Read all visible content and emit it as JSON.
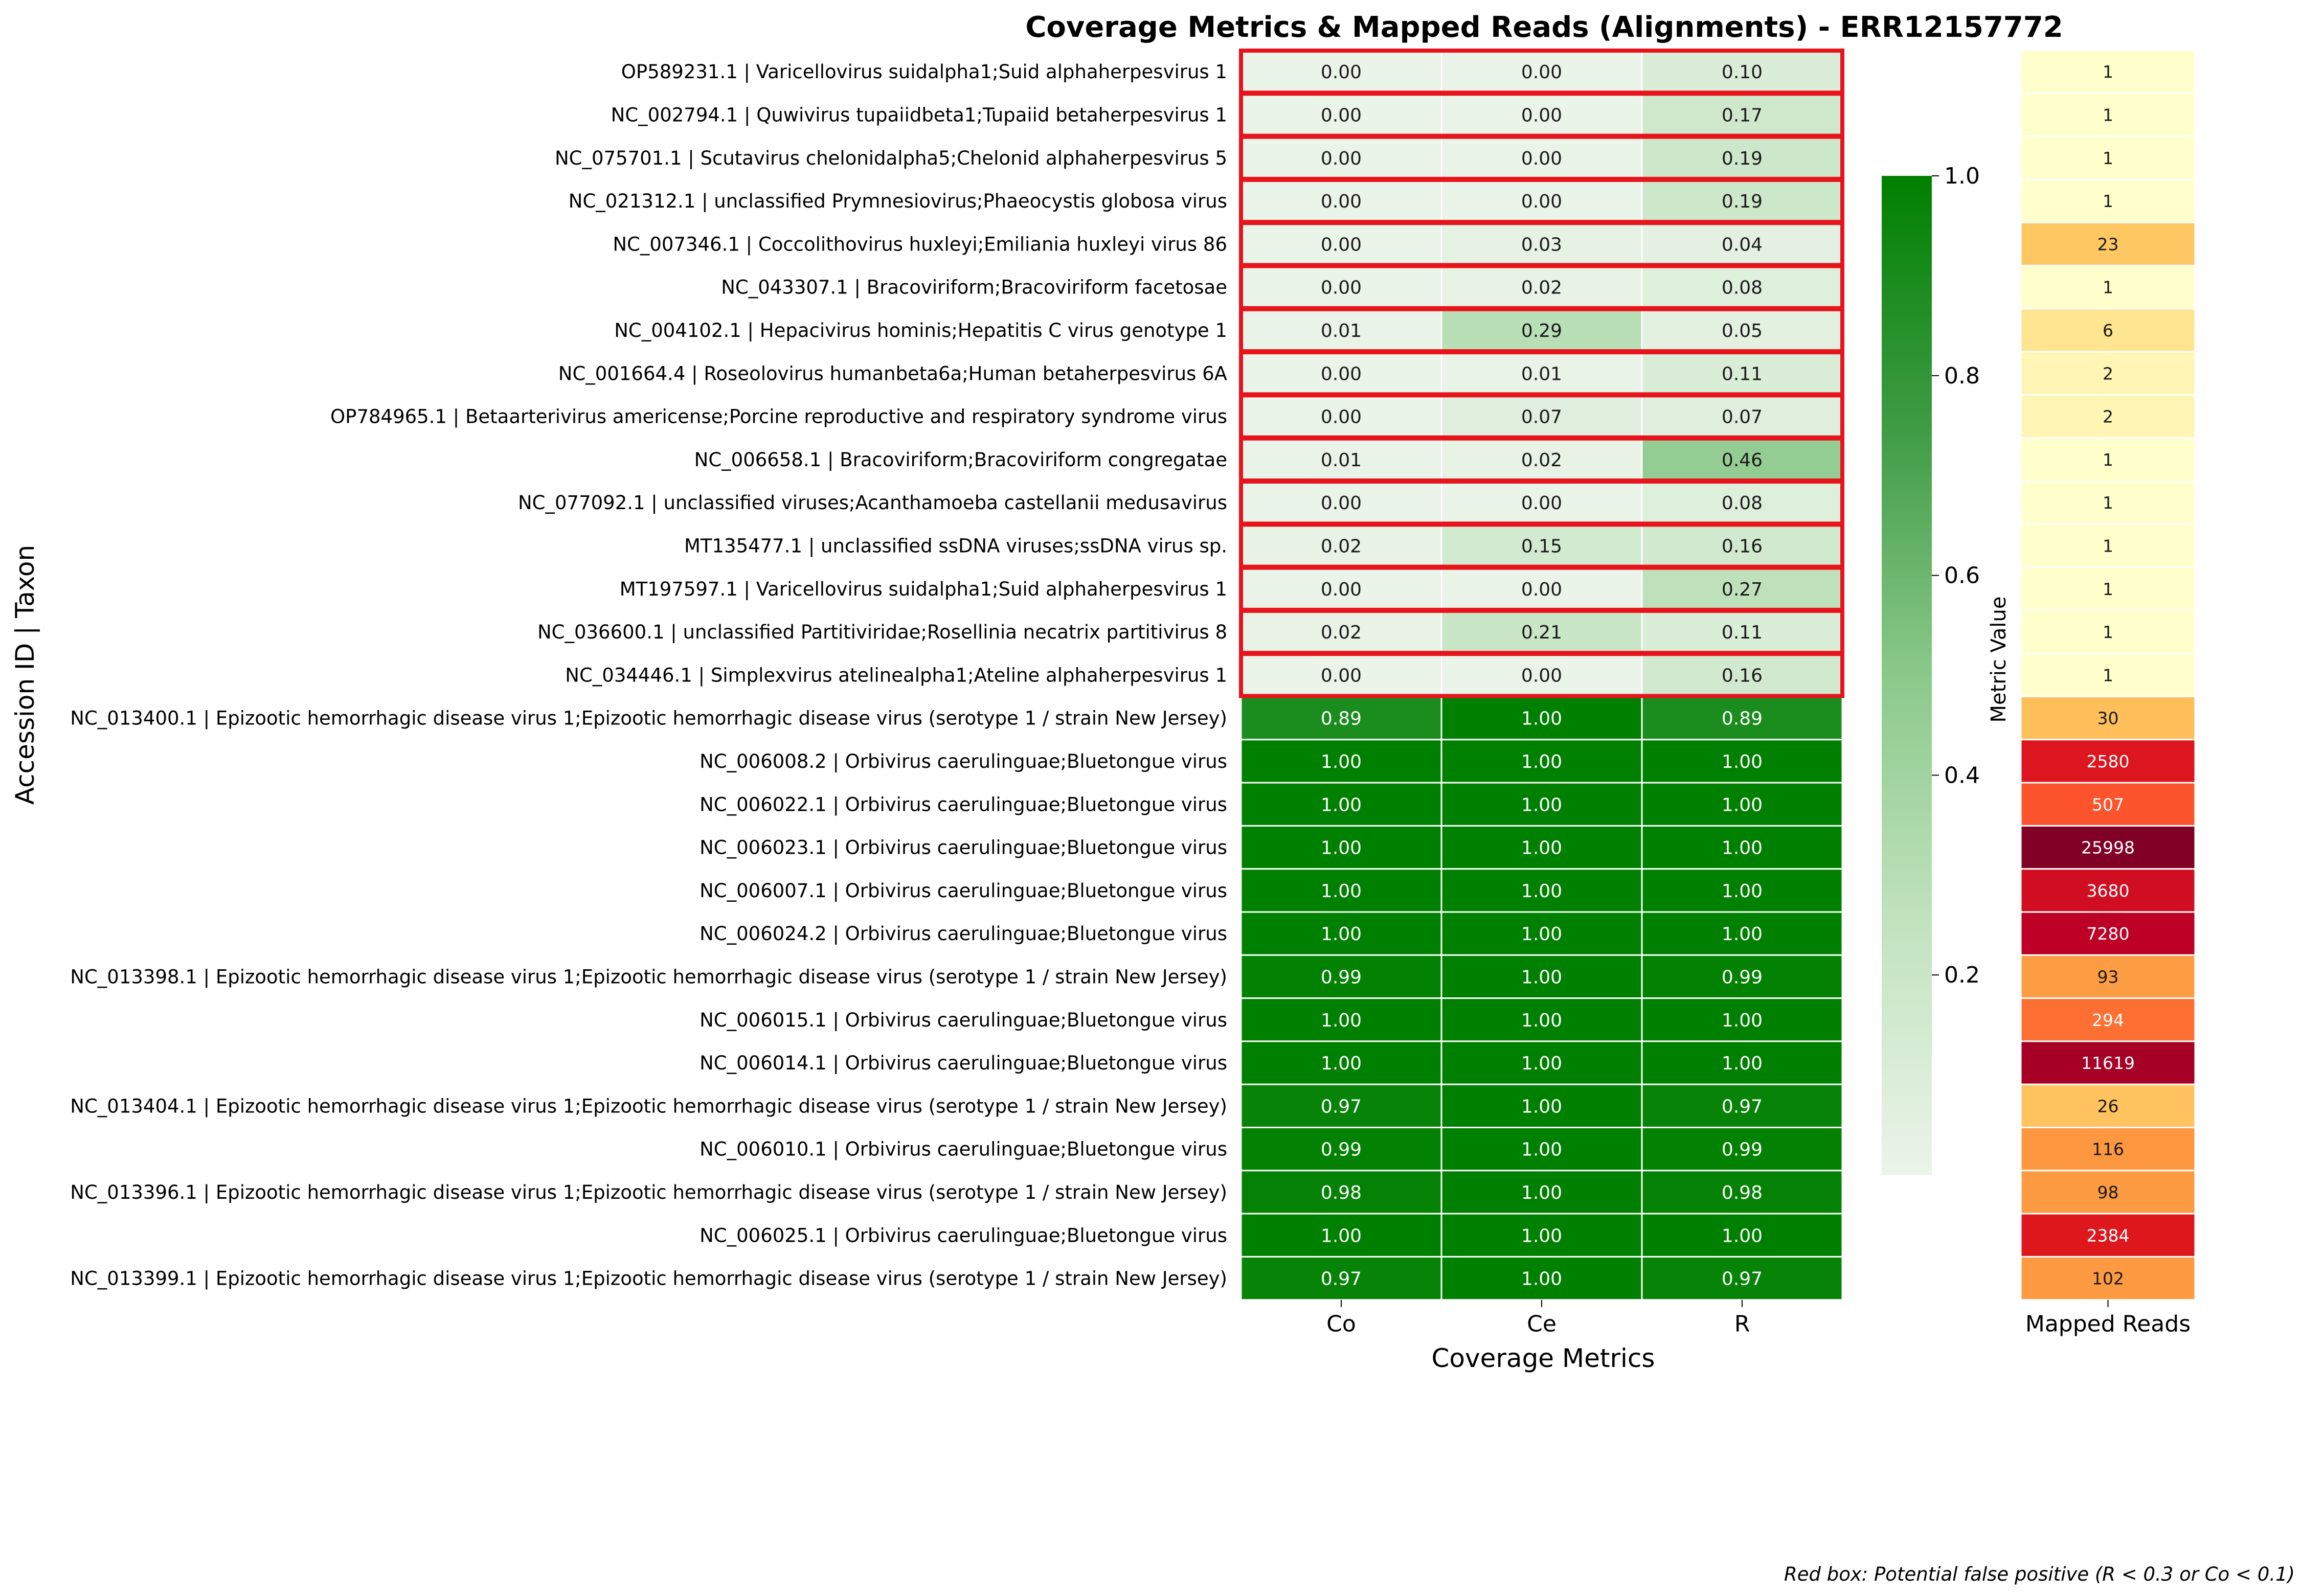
{
  "chart_data": {
    "type": "heatmap",
    "title": "Coverage Metrics & Mapped Reads (Alignments) - ERR12157772",
    "ylabel": "Accession ID | Taxon",
    "xlabel": "Coverage Metrics",
    "metric_columns": [
      "Co",
      "Ce",
      "R"
    ],
    "reads_column": "Mapped Reads",
    "colorbar": {
      "label": "Metric Value",
      "ticks": [
        "0.2",
        "0.4",
        "0.6",
        "0.8",
        "1.0"
      ],
      "range": [
        0,
        1
      ]
    },
    "footnote": "Red box: Potential false positive (R < 0.3 or Co < 0.1)",
    "rows": [
      {
        "label": "OP589231.1 | Varicellovirus suidalpha1;Suid alphaherpesvirus 1",
        "Co": 0.0,
        "Ce": 0.0,
        "R": 0.1,
        "reads": 1,
        "flagged": true
      },
      {
        "label": "NC_002794.1 | Quwivirus tupaiidbeta1;Tupaiid betaherpesvirus 1",
        "Co": 0.0,
        "Ce": 0.0,
        "R": 0.17,
        "reads": 1,
        "flagged": true
      },
      {
        "label": "NC_075701.1 | Scutavirus chelonidalpha5;Chelonid alphaherpesvirus 5",
        "Co": 0.0,
        "Ce": 0.0,
        "R": 0.19,
        "reads": 1,
        "flagged": true
      },
      {
        "label": "NC_021312.1 | unclassified Prymnesiovirus;Phaeocystis globosa virus",
        "Co": 0.0,
        "Ce": 0.0,
        "R": 0.19,
        "reads": 1,
        "flagged": true
      },
      {
        "label": "NC_007346.1 | Coccolithovirus huxleyi;Emiliania huxleyi virus 86",
        "Co": 0.0,
        "Ce": 0.03,
        "R": 0.04,
        "reads": 23,
        "flagged": true
      },
      {
        "label": "NC_043307.1 | Bracoviriform;Bracoviriform facetosae",
        "Co": 0.0,
        "Ce": 0.02,
        "R": 0.08,
        "reads": 1,
        "flagged": true
      },
      {
        "label": "NC_004102.1 | Hepacivirus hominis;Hepatitis C virus genotype 1",
        "Co": 0.01,
        "Ce": 0.29,
        "R": 0.05,
        "reads": 6,
        "flagged": true
      },
      {
        "label": "NC_001664.4 | Roseolovirus humanbeta6a;Human betaherpesvirus 6A",
        "Co": 0.0,
        "Ce": 0.01,
        "R": 0.11,
        "reads": 2,
        "flagged": true
      },
      {
        "label": "OP784965.1 | Betaarterivirus americense;Porcine reproductive and respiratory syndrome virus",
        "Co": 0.0,
        "Ce": 0.07,
        "R": 0.07,
        "reads": 2,
        "flagged": true
      },
      {
        "label": "NC_006658.1 | Bracoviriform;Bracoviriform congregatae",
        "Co": 0.01,
        "Ce": 0.02,
        "R": 0.46,
        "reads": 1,
        "flagged": true
      },
      {
        "label": "NC_077092.1 | unclassified viruses;Acanthamoeba castellanii medusavirus",
        "Co": 0.0,
        "Ce": 0.0,
        "R": 0.08,
        "reads": 1,
        "flagged": true
      },
      {
        "label": "MT135477.1 | unclassified ssDNA viruses;ssDNA virus sp.",
        "Co": 0.02,
        "Ce": 0.15,
        "R": 0.16,
        "reads": 1,
        "flagged": true
      },
      {
        "label": "MT197597.1 | Varicellovirus suidalpha1;Suid alphaherpesvirus 1",
        "Co": 0.0,
        "Ce": 0.0,
        "R": 0.27,
        "reads": 1,
        "flagged": true
      },
      {
        "label": "NC_036600.1 | unclassified Partitiviridae;Rosellinia necatrix partitivirus 8",
        "Co": 0.02,
        "Ce": 0.21,
        "R": 0.11,
        "reads": 1,
        "flagged": true
      },
      {
        "label": "NC_034446.1 | Simplexvirus atelinealpha1;Ateline alphaherpesvirus 1",
        "Co": 0.0,
        "Ce": 0.0,
        "R": 0.16,
        "reads": 1,
        "flagged": true
      },
      {
        "label": "NC_013400.1 | Epizootic hemorrhagic disease virus 1;Epizootic hemorrhagic disease virus (serotype 1 / strain New Jersey)",
        "Co": 0.89,
        "Ce": 1.0,
        "R": 0.89,
        "reads": 30,
        "flagged": false
      },
      {
        "label": "NC_006008.2 | Orbivirus caeruling­uae;Bluetongue virus",
        "Co": 1.0,
        "Ce": 1.0,
        "R": 1.0,
        "reads": 2580,
        "flagged": false
      },
      {
        "label": "NC_006022.1 | Orbivirus caerulinguae;Bluetongue virus",
        "Co": 1.0,
        "Ce": 1.0,
        "R": 1.0,
        "reads": 507,
        "flagged": false
      },
      {
        "label": "NC_006023.1 | Orbivirus caerulinguae;Bluetongue virus",
        "Co": 1.0,
        "Ce": 1.0,
        "R": 1.0,
        "reads": 25998,
        "flagged": false
      },
      {
        "label": "NC_006007.1 | Orbivirus caerulinguae;Bluetongue virus",
        "Co": 1.0,
        "Ce": 1.0,
        "R": 1.0,
        "reads": 3680,
        "flagged": false
      },
      {
        "label": "NC_006024.2 | Orbivirus caerulinguae;Bluetongue virus",
        "Co": 1.0,
        "Ce": 1.0,
        "R": 1.0,
        "reads": 7280,
        "flagged": false
      },
      {
        "label": "NC_013398.1 | Epizootic hemorrhagic disease virus 1;Epizootic hemorrhagic disease virus (serotype 1 / strain New Jersey)",
        "Co": 0.99,
        "Ce": 1.0,
        "R": 0.99,
        "reads": 93,
        "flagged": false
      },
      {
        "label": "NC_006015.1 | Orbivirus caerulinguae;Bluetongue virus",
        "Co": 1.0,
        "Ce": 1.0,
        "R": 1.0,
        "reads": 294,
        "flagged": false
      },
      {
        "label": "NC_006014.1 | Orbivirus caerulinguae;Bluetongue virus",
        "Co": 1.0,
        "Ce": 1.0,
        "R": 1.0,
        "reads": 11619,
        "flagged": false
      },
      {
        "label": "NC_013404.1 | Epizootic hemorrhagic disease virus 1;Epizootic hemorrhagic disease virus (serotype 1 / strain New Jersey)",
        "Co": 0.97,
        "Ce": 1.0,
        "R": 0.97,
        "reads": 26,
        "flagged": false
      },
      {
        "label": "NC_006010.1 | Orbivirus caerulinguae;Bluetongue virus",
        "Co": 0.99,
        "Ce": 1.0,
        "R": 0.99,
        "reads": 116,
        "flagged": false
      },
      {
        "label": "NC_013396.1 | Epizootic hemorrhagic disease virus 1;Epizootic hemorrhagic disease virus (serotype 1 / strain New Jersey)",
        "Co": 0.98,
        "Ce": 1.0,
        "R": 0.98,
        "reads": 98,
        "flagged": false
      },
      {
        "label": "NC_006025.1 | Orbivirus caerulinguae;Bluetongue virus",
        "Co": 1.0,
        "Ce": 1.0,
        "R": 1.0,
        "reads": 2384,
        "flagged": false
      },
      {
        "label": "NC_013399.1 | Epizootic hemorrhagic disease virus 1;Epizootic hemorrhagic disease virus (serotype 1 / strain New Jersey)",
        "Co": 0.97,
        "Ce": 1.0,
        "R": 0.97,
        "reads": 102,
        "flagged": false
      }
    ],
    "colors": {
      "flag_box": "#e8141c",
      "metric_low": "#ebf4e9",
      "metric_high": "#008000",
      "reads_scale": [
        "#ffffcc",
        "#ffeda0",
        "#fed976",
        "#feb24c",
        "#fd8d3c",
        "#fc4e2a",
        "#e31a1c",
        "#bd0026",
        "#800026"
      ]
    }
  }
}
